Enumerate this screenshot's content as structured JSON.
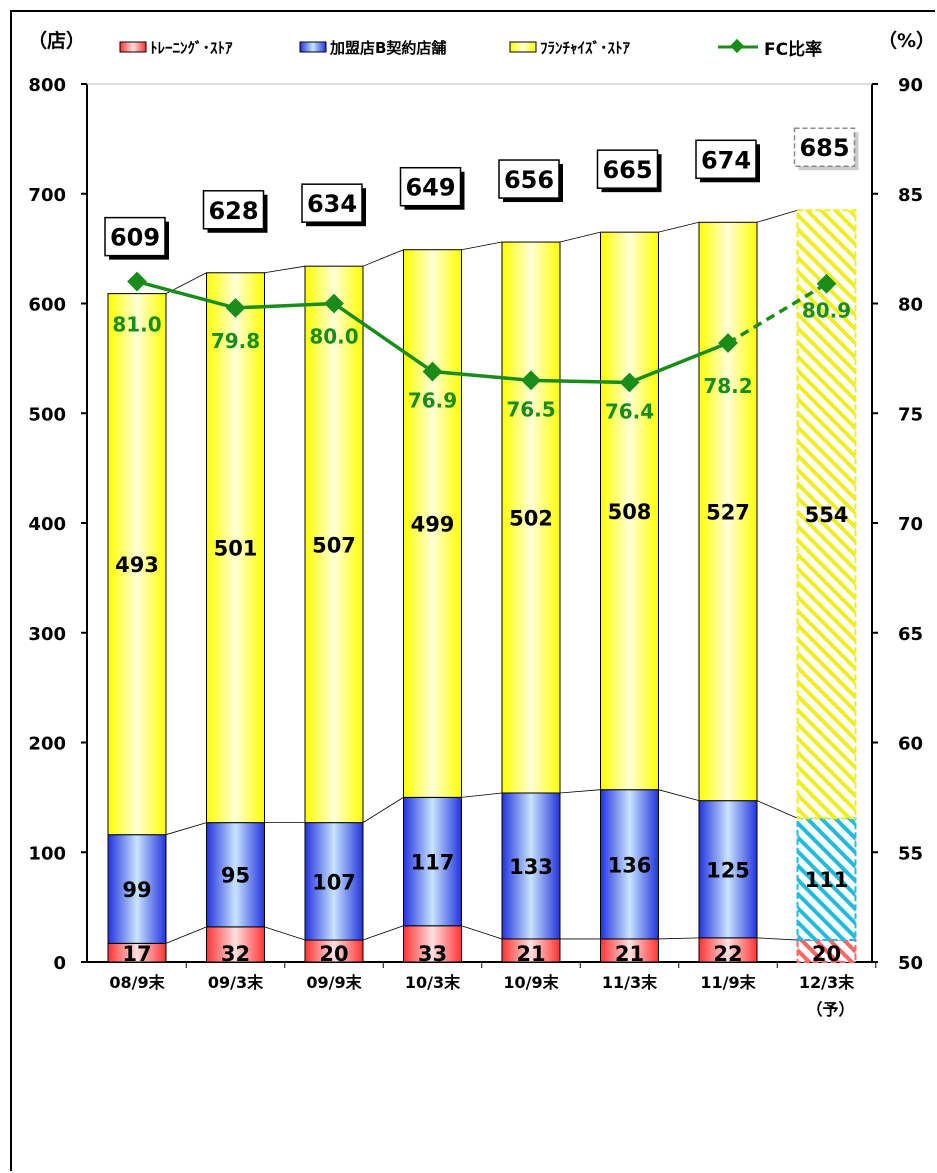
{
  "chart_data": {
    "type": "bar",
    "stacked": true,
    "categories": [
      "08/9末",
      "09/3末",
      "09/9末",
      "10/3末",
      "10/9末",
      "11/3末",
      "11/9末",
      "12/3末"
    ],
    "category_sublabels": [
      "",
      "",
      "",
      "",
      "",
      "",
      "",
      "（予）"
    ],
    "forecast_index": 7,
    "y_left": {
      "unit_label": "（店）",
      "ylim": [
        0,
        800
      ],
      "ticks": [
        0,
        100,
        200,
        300,
        400,
        500,
        600,
        700,
        800
      ]
    },
    "y_right": {
      "unit_label": "（%）",
      "ylim": [
        50,
        90
      ],
      "ticks": [
        50,
        55,
        60,
        65,
        70,
        75,
        80,
        85,
        90
      ]
    },
    "series": [
      {
        "name": "ﾄﾚｰﾆﾝｸﾞ･ｽﾄｱ",
        "kind": "bar",
        "color": "#ff6666",
        "values": [
          17,
          32,
          20,
          33,
          21,
          21,
          22,
          20
        ]
      },
      {
        "name": "加盟店B契約店舗",
        "kind": "bar",
        "color": "#4455ee",
        "values": [
          99,
          95,
          107,
          117,
          133,
          136,
          125,
          111
        ]
      },
      {
        "name": "ﾌﾗﾝﾁｬｲｽﾞ･ｽﾄｱ",
        "kind": "bar",
        "color": "#ffff33",
        "values": [
          493,
          501,
          507,
          499,
          502,
          508,
          527,
          554
        ]
      },
      {
        "name": "FC比率",
        "kind": "line",
        "axis": "right",
        "color": "#1a8c1a",
        "values": [
          81.0,
          79.8,
          80.0,
          76.9,
          76.5,
          76.4,
          78.2,
          80.9
        ]
      }
    ],
    "totals": [
      609,
      628,
      634,
      649,
      656,
      665,
      674,
      685
    ],
    "grid": false,
    "legend_position": "top"
  },
  "legend": [
    {
      "label": "ﾄﾚｰﾆﾝｸﾞ･ｽﾄｱ",
      "icon": "legend-swatch-red"
    },
    {
      "label": "加盟店B契約店舗",
      "icon": "legend-swatch-blue"
    },
    {
      "label": "ﾌﾗﾝﾁｬｲｽﾞ･ｽﾄｱ",
      "icon": "legend-swatch-yellow"
    },
    {
      "label": "FC比率",
      "icon": "legend-line-diamond-green"
    }
  ]
}
